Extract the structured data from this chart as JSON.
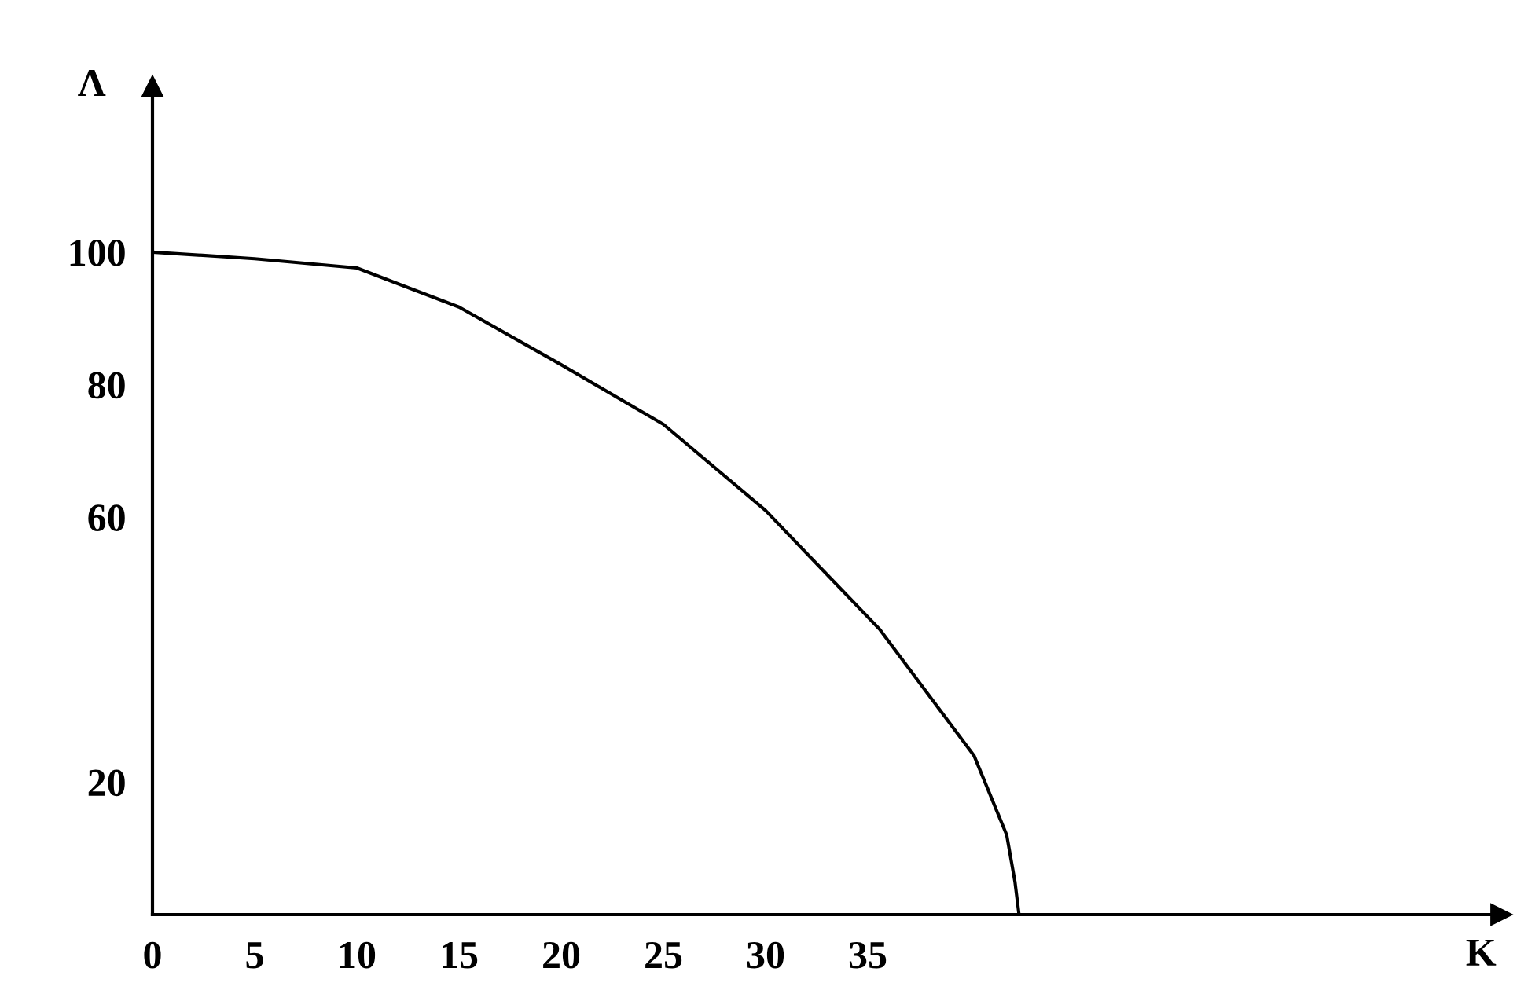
{
  "chart_data": {
    "type": "line",
    "xlabel": "K",
    "ylabel": "Λ",
    "x": [
      0,
      5,
      10,
      15,
      20,
      25,
      30,
      35.6,
      40.2,
      41.8,
      42.2,
      42.4
    ],
    "series": [
      {
        "color": "#000000",
        "values": [
          100,
          99,
          97.6,
          91.7,
          83,
          74,
          61,
          43,
          24,
          12,
          5,
          0
        ]
      }
    ],
    "xlim": [
      0,
      66
    ],
    "ylim": [
      0,
      125
    ],
    "xticks": [
      0,
      5,
      10,
      15,
      20,
      25,
      30,
      35
    ],
    "yticks": [
      20,
      60,
      80,
      100
    ],
    "grid": false,
    "marker": "none",
    "line_style": "solid"
  }
}
